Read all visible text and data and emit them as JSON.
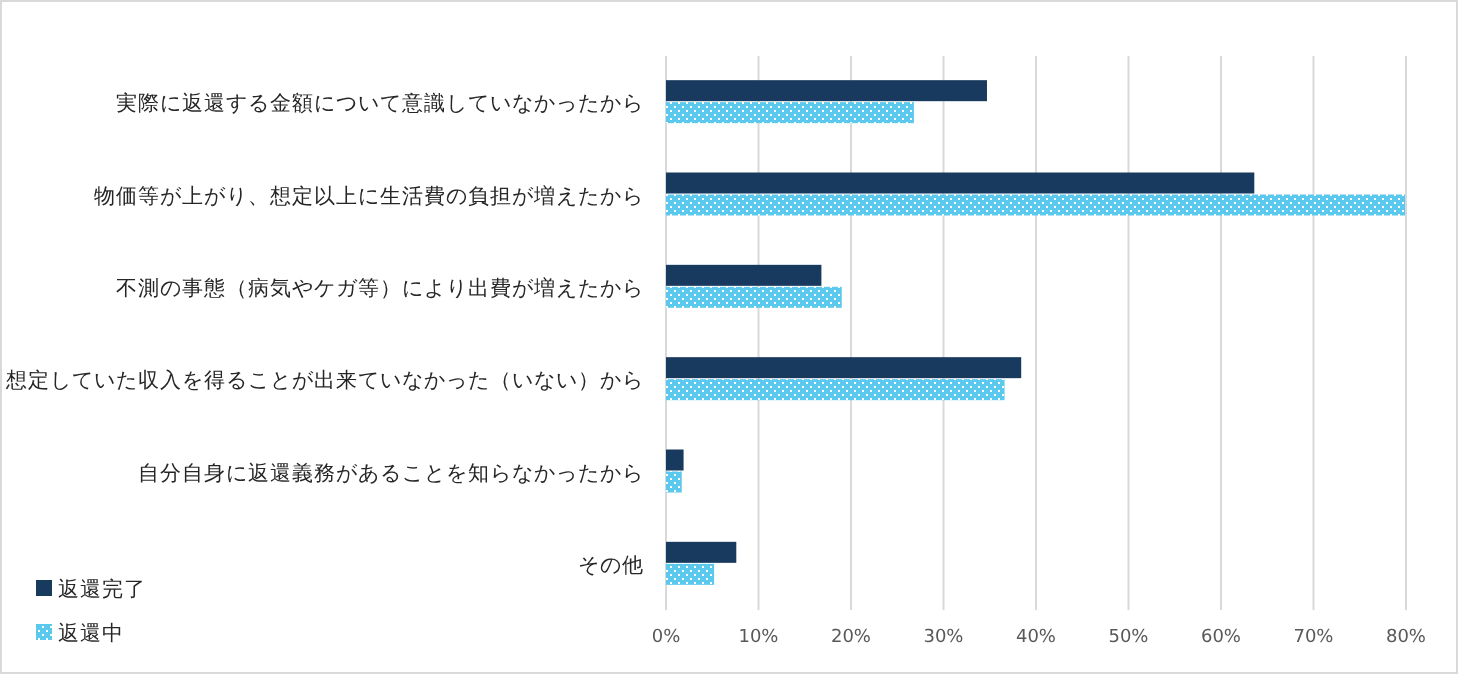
{
  "chart_data": {
    "type": "bar",
    "orientation": "horizontal",
    "categories": [
      "実際に返還する金額について意識していなかったから",
      "物価等が上がり、想定以上に生活費の負担が増えたから",
      "不測の事態（病気やケガ等）により出費が増えたから",
      "想定していた収入を得ることが出来ていなかった（いない）から",
      "自分自身に返還義務があることを知らなかったから",
      "その他"
    ],
    "series": [
      {
        "name": "返還完了",
        "color": "#173a5e",
        "values": [
          34.7,
          63.6,
          16.8,
          38.4,
          1.9,
          7.6
        ]
      },
      {
        "name": "返還中",
        "color": "#5bc8ee",
        "values": [
          26.8,
          79.9,
          19.0,
          36.6,
          1.7,
          5.2
        ]
      }
    ],
    "xlim": [
      0,
      80
    ],
    "xticks": [
      {
        "value": 0,
        "label": "0%"
      },
      {
        "value": 10,
        "label": "10%"
      },
      {
        "value": 20,
        "label": "20%"
      },
      {
        "value": 30,
        "label": "30%"
      },
      {
        "value": 40,
        "label": "40%"
      },
      {
        "value": 50,
        "label": "50%"
      },
      {
        "value": 60,
        "label": "60%"
      },
      {
        "value": 70,
        "label": "70%"
      },
      {
        "value": 80,
        "label": "80%"
      }
    ],
    "grid": "x",
    "legend": "bottom left"
  }
}
